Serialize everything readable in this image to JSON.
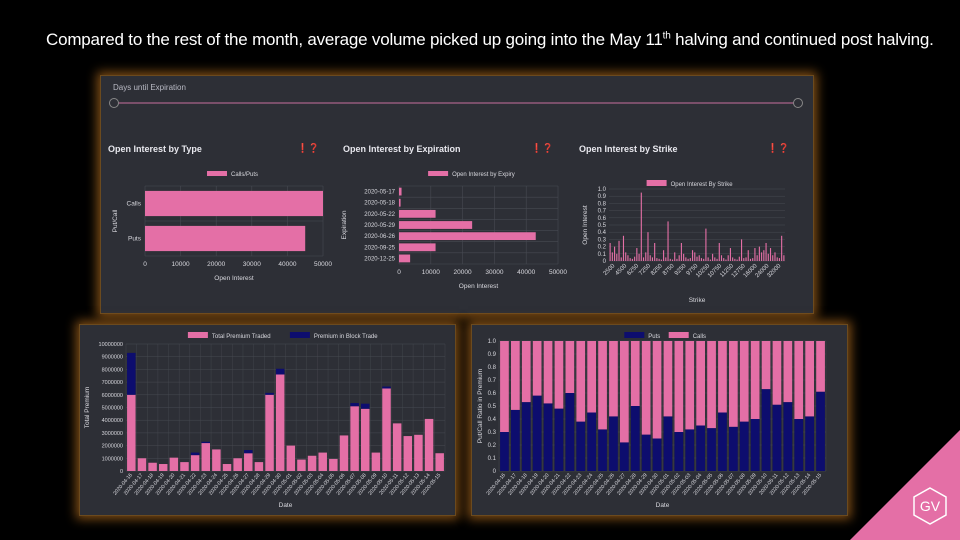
{
  "slide": {
    "title_pre": "Compared to the rest of the month, average volume picked up going into the May 11",
    "title_sup": "th",
    "title_post": " halving and continued post halving.",
    "logo_text": "GV"
  },
  "colors": {
    "pink": "#e46fa6",
    "navy": "#0d0d6e",
    "panel": "#2d2f36",
    "glow": "#e68c28"
  },
  "slider": {
    "label": "Days until Expiration"
  },
  "sections": {
    "type_title": "Open Interest by Type",
    "expiry_title": "Open Interest by Expiration",
    "strike_title": "Open Interest by Strike",
    "icons": "❗❓"
  },
  "chart_data": [
    {
      "type": "bar",
      "orientation": "horizontal",
      "title": "Open Interest by Type",
      "legend": [
        "Calls/Puts"
      ],
      "categories": [
        "Calls",
        "Puts"
      ],
      "values": [
        50000,
        45000
      ],
      "xlabel": "Open Interest",
      "ylabel": "Put/Call",
      "xlim": [
        0,
        50000
      ],
      "xticks": [
        "0",
        "10000",
        "20000",
        "30000",
        "40000",
        "50000"
      ],
      "legend_position": "top"
    },
    {
      "type": "bar",
      "orientation": "horizontal",
      "title": "Open Interest by Expiration",
      "legend": [
        "Open Interest by Expiry"
      ],
      "categories": [
        "2020-05-17",
        "2020-05-18",
        "2020-05-22",
        "2020-05-29",
        "2020-06-26",
        "2020-09-25",
        "2020-12-25"
      ],
      "values": [
        800,
        500,
        11500,
        23000,
        43000,
        11500,
        3500
      ],
      "xlabel": "Open Interest",
      "ylabel": "Expiration",
      "xlim": [
        0,
        50000
      ],
      "xticks": [
        "0",
        "10000",
        "20000",
        "30000",
        "40000",
        "50000"
      ],
      "legend_position": "top"
    },
    {
      "type": "bar",
      "title": "Open Interest by Strike",
      "legend": [
        "Open Interest By Strike"
      ],
      "xlabel": "Strike",
      "ylabel": "Open Interest",
      "ylim": [
        0,
        1.0
      ],
      "yticks": [
        "0",
        "0.1",
        "0.2",
        "0.3",
        "0.4",
        "0.5",
        "0.6",
        "0.7",
        "0.8",
        "0.9",
        "1.0"
      ],
      "xticks": [
        "2500",
        "4500",
        "6250",
        "7250",
        "8250",
        "8750",
        "9250",
        "9750",
        "10250",
        "10750",
        "11250",
        "12750",
        "16000",
        "24000",
        "32000"
      ],
      "values": [
        0.25,
        0.12,
        0.2,
        0.1,
        0.28,
        0.05,
        0.35,
        0.12,
        0.08,
        0.04,
        0.03,
        0.06,
        0.18,
        0.1,
        0.95,
        0.05,
        0.12,
        0.4,
        0.08,
        0.05,
        0.25,
        0.04,
        0.03,
        0.02,
        0.15,
        0.05,
        0.55,
        0.03,
        0.02,
        0.12,
        0.03,
        0.08,
        0.25,
        0.1,
        0.05,
        0.03,
        0.04,
        0.15,
        0.12,
        0.06,
        0.08,
        0.04,
        0.03,
        0.45,
        0.05,
        0.02,
        0.1,
        0.05,
        0.03,
        0.25,
        0.08,
        0.04,
        0.02,
        0.08,
        0.18,
        0.05,
        0.03,
        0.02,
        0.06,
        0.3,
        0.04,
        0.05,
        0.15,
        0.03,
        0.04,
        0.18,
        0.08,
        0.2,
        0.12,
        0.15,
        0.25,
        0.1,
        0.18,
        0.08,
        0.12,
        0.05,
        0.04,
        0.35,
        0.08
      ],
      "legend_position": "top"
    },
    {
      "type": "bar",
      "stacked": true,
      "legend": [
        "Total Premium Traded",
        "Premium in Block Trade"
      ],
      "series": [
        {
          "name": "Total Premium Traded",
          "values": [
            6000000,
            1000000,
            650000,
            550000,
            1050000,
            700000,
            1250000,
            2200000,
            1700000,
            550000,
            1000000,
            1400000,
            700000,
            6000000,
            7600000,
            2000000,
            900000,
            1200000,
            1450000,
            950000,
            2800000,
            5100000,
            4900000,
            1450000,
            6500000,
            3750000,
            2750000,
            2850000,
            4100000,
            1400000
          ]
        },
        {
          "name": "Premium in Block Trade",
          "values": [
            3300000,
            0,
            0,
            0,
            0,
            0,
            200000,
            100000,
            0,
            0,
            0,
            250000,
            0,
            150000,
            450000,
            0,
            0,
            0,
            0,
            0,
            0,
            250000,
            400000,
            0,
            150000,
            0,
            0,
            0,
            0,
            0
          ]
        }
      ],
      "categories": [
        "2020-04-16",
        "2020-04-17",
        "2020-04-18",
        "2020-04-19",
        "2020-04-20",
        "2020-04-21",
        "2020-04-22",
        "2020-04-23",
        "2020-04-24",
        "2020-04-25",
        "2020-04-26",
        "2020-04-27",
        "2020-04-28",
        "2020-04-29",
        "2020-04-30",
        "2020-05-01",
        "2020-05-02",
        "2020-05-03",
        "2020-05-04",
        "2020-05-05",
        "2020-05-06",
        "2020-05-07",
        "2020-05-08",
        "2020-05-09",
        "2020-05-10",
        "2020-05-11",
        "2020-05-12",
        "2020-05-13",
        "2020-05-14",
        "2020-05-15"
      ],
      "xlabel": "Date",
      "ylabel": "Total Premium",
      "ylim": [
        0,
        10000000
      ],
      "yticks": [
        "0",
        "1000000",
        "2000000",
        "3000000",
        "4000000",
        "5000000",
        "6000000",
        "7000000",
        "8000000",
        "9000000",
        "10000000"
      ],
      "legend_position": "top"
    },
    {
      "type": "bar",
      "stacked": true,
      "legend": [
        "Puts",
        "Calls"
      ],
      "series": [
        {
          "name": "Puts",
          "values": [
            0.3,
            0.47,
            0.53,
            0.58,
            0.52,
            0.48,
            0.6,
            0.38,
            0.45,
            0.32,
            0.42,
            0.22,
            0.5,
            0.28,
            0.25,
            0.42,
            0.3,
            0.32,
            0.35,
            0.33,
            0.45,
            0.34,
            0.38,
            0.4,
            0.63,
            0.51,
            0.53,
            0.4,
            0.42,
            0.61
          ]
        },
        {
          "name": "Calls",
          "values": [
            0.7,
            0.53,
            0.47,
            0.42,
            0.48,
            0.52,
            0.4,
            0.62,
            0.55,
            0.68,
            0.58,
            0.78,
            0.5,
            0.72,
            0.75,
            0.58,
            0.7,
            0.68,
            0.65,
            0.67,
            0.55,
            0.66,
            0.62,
            0.6,
            0.37,
            0.49,
            0.47,
            0.6,
            0.58,
            0.39
          ]
        }
      ],
      "categories": [
        "2020-04-16",
        "2020-04-17",
        "2020-04-18",
        "2020-04-19",
        "2020-04-20",
        "2020-04-21",
        "2020-04-22",
        "2020-04-23",
        "2020-04-24",
        "2020-04-25",
        "2020-04-26",
        "2020-04-27",
        "2020-04-28",
        "2020-04-29",
        "2020-04-30",
        "2020-05-01",
        "2020-05-02",
        "2020-05-03",
        "2020-05-04",
        "2020-05-05",
        "2020-05-06",
        "2020-05-07",
        "2020-05-08",
        "2020-05-09",
        "2020-05-10",
        "2020-05-11",
        "2020-05-12",
        "2020-05-13",
        "2020-05-14",
        "2020-05-15"
      ],
      "xlabel": "Date",
      "ylabel": "Put/Call Ratio in Premium",
      "ylim": [
        0,
        1.0
      ],
      "yticks": [
        "0",
        "0.1",
        "0.2",
        "0.3",
        "0.4",
        "0.5",
        "0.6",
        "0.7",
        "0.8",
        "0.9",
        "1.0"
      ],
      "legend_position": "top"
    }
  ]
}
